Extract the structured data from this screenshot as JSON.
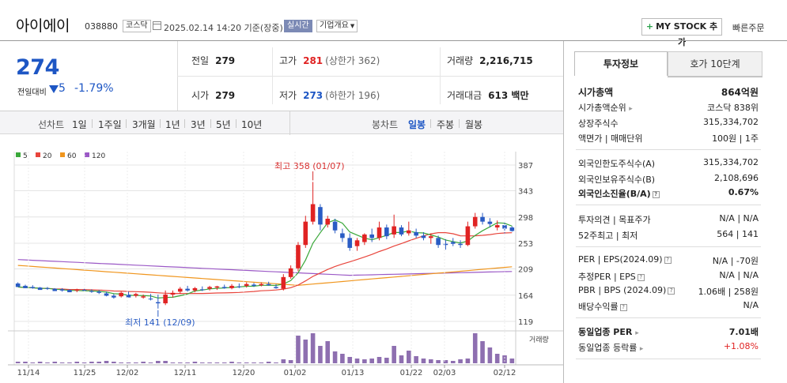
{
  "header": {
    "company": "아이에이",
    "code": "038880",
    "market": "코스닥",
    "basis": "2025.02.14 14:20 기준(장중)",
    "realtime": "실시간",
    "corp_info": "기업개요",
    "mystock": "MY STOCK 추가",
    "quick_order": "빠른주문"
  },
  "quote": {
    "price": "274",
    "change_label": "전일대비",
    "change": "5",
    "change_rate": "-1.79%",
    "prev_label": "전일",
    "prev": "279",
    "open_label": "시가",
    "open": "279",
    "high_label": "고가",
    "high": "281",
    "upper_limit": "(상한가 362)",
    "low_label": "저가",
    "low": "273",
    "lower_limit": "(하한가 196)",
    "volume_label": "거래량",
    "volume": "2,216,715",
    "amount_label": "거래대금",
    "amount": "613 백만"
  },
  "toolbar": {
    "line_chart": "선차트",
    "periods": [
      "1일",
      "1주일",
      "3개월",
      "1년",
      "3년",
      "5년",
      "10년"
    ],
    "candle_chart": "봉차트",
    "candle_types": [
      "일봉",
      "주봉",
      "월봉"
    ],
    "active_candle": "일봉"
  },
  "chart_data": {
    "type": "candlestick",
    "legend": [
      "5",
      "20",
      "60",
      "120"
    ],
    "legend_colors": [
      "#3aa83a",
      "#e8453c",
      "#f0961e",
      "#9b59c6"
    ],
    "y_ticks": [
      "387",
      "343",
      "298",
      "253",
      "209",
      "164",
      "119"
    ],
    "ylim": [
      119,
      387
    ],
    "x_labels": [
      "11/14",
      "11/25",
      "12/02",
      "12/11",
      "12/20",
      "01/02",
      "01/13",
      "01/22",
      "02/03",
      "02/12"
    ],
    "high_note": "최고 358 (01/07)",
    "low_note": "최저 141 (12/09)",
    "volume_label": "거래량",
    "candles": [
      [
        184,
        186,
        180,
        178
      ],
      [
        180,
        182,
        177,
        176
      ],
      [
        178,
        181,
        175,
        176
      ],
      [
        177,
        178,
        174,
        173
      ],
      [
        176,
        178,
        173,
        175
      ],
      [
        175,
        176,
        172,
        171
      ],
      [
        174,
        176,
        170,
        172
      ],
      [
        173,
        174,
        170,
        169
      ],
      [
        172,
        175,
        169,
        173
      ],
      [
        173,
        175,
        171,
        172
      ],
      [
        171,
        174,
        168,
        170
      ],
      [
        170,
        173,
        166,
        168
      ],
      [
        167,
        170,
        162,
        163
      ],
      [
        163,
        166,
        158,
        160
      ],
      [
        162,
        170,
        160,
        168
      ],
      [
        165,
        170,
        162,
        160
      ],
      [
        163,
        168,
        160,
        166
      ],
      [
        160,
        165,
        158,
        162
      ],
      [
        158,
        166,
        155,
        157
      ],
      [
        152,
        165,
        141,
        150
      ],
      [
        150,
        172,
        147,
        165
      ],
      [
        165,
        172,
        160,
        168
      ],
      [
        170,
        178,
        166,
        175
      ],
      [
        175,
        180,
        170,
        172
      ],
      [
        172,
        178,
        169,
        176
      ],
      [
        174,
        179,
        171,
        173
      ],
      [
        175,
        180,
        172,
        178
      ],
      [
        177,
        180,
        173,
        179
      ],
      [
        178,
        182,
        175,
        176
      ],
      [
        176,
        183,
        174,
        180
      ],
      [
        179,
        184,
        176,
        178
      ],
      [
        180,
        186,
        177,
        183
      ],
      [
        182,
        185,
        178,
        180
      ],
      [
        181,
        186,
        179,
        183
      ],
      [
        183,
        187,
        180,
        181
      ],
      [
        178,
        183,
        175,
        176
      ],
      [
        175,
        200,
        172,
        195
      ],
      [
        195,
        215,
        192,
        210
      ],
      [
        210,
        255,
        205,
        250
      ],
      [
        250,
        300,
        245,
        290
      ],
      [
        290,
        358,
        285,
        320
      ],
      [
        315,
        320,
        275,
        285
      ],
      [
        285,
        300,
        280,
        295
      ],
      [
        290,
        295,
        270,
        275
      ],
      [
        270,
        278,
        255,
        262
      ],
      [
        262,
        270,
        240,
        245
      ],
      [
        248,
        262,
        240,
        258
      ],
      [
        255,
        270,
        250,
        268
      ],
      [
        268,
        278,
        255,
        262
      ],
      [
        262,
        290,
        258,
        280
      ],
      [
        280,
        285,
        260,
        265
      ],
      [
        268,
        302,
        262,
        282
      ],
      [
        280,
        284,
        265,
        268
      ],
      [
        270,
        290,
        266,
        275
      ],
      [
        272,
        278,
        262,
        266
      ],
      [
        266,
        272,
        258,
        262
      ],
      [
        262,
        270,
        252,
        265
      ],
      [
        262,
        266,
        245,
        250
      ],
      [
        252,
        260,
        242,
        250
      ],
      [
        255,
        262,
        248,
        252
      ],
      [
        252,
        258,
        245,
        250
      ],
      [
        250,
        290,
        248,
        282
      ],
      [
        282,
        305,
        278,
        298
      ],
      [
        298,
        305,
        285,
        290
      ],
      [
        290,
        296,
        280,
        286
      ],
      [
        280,
        292,
        275,
        284
      ],
      [
        284,
        288,
        270,
        278
      ],
      [
        280,
        282,
        273,
        274
      ]
    ],
    "volumes": [
      2,
      2,
      1,
      2,
      1,
      2,
      1,
      1,
      2,
      1,
      2,
      2,
      3,
      2,
      1,
      1,
      1,
      2,
      1,
      3,
      3,
      1,
      1,
      1,
      2,
      1,
      1,
      1,
      1,
      2,
      1,
      1,
      1,
      1,
      2,
      1,
      5,
      4,
      35,
      30,
      38,
      22,
      28,
      15,
      12,
      8,
      6,
      5,
      6,
      8,
      7,
      22,
      10,
      16,
      9,
      6,
      5,
      4,
      4,
      3,
      5,
      6,
      38,
      28,
      20,
      12,
      10,
      6
    ]
  },
  "invest": {
    "tab_active": "투자정보",
    "tab_other": "호가 10단계",
    "rows": [
      {
        "label": "시가총액",
        "value": "864억원"
      },
      {
        "label": "시가총액순위",
        "value": "코스닥 838위"
      },
      {
        "label": "상장주식수",
        "value": "315,334,702"
      },
      {
        "label": "액면가 | 매매단위",
        "value": "100원 | 1주"
      },
      {
        "label": "외국인한도주식수(A)",
        "value": "315,334,702"
      },
      {
        "label": "외국인보유주식수(B)",
        "value": "2,108,696"
      },
      {
        "label": "외국인소진율(B/A)",
        "value": "0.67%"
      },
      {
        "label": "투자의견 | 목표주가",
        "value": "N/A | N/A"
      },
      {
        "label": "52주최고 | 최저",
        "value": "564 | 141"
      },
      {
        "label": "PER | EPS(2024.09)",
        "value": "N/A | -70원"
      },
      {
        "label": "추정PER | EPS",
        "value": "N/A | N/A"
      },
      {
        "label": "PBR | BPS (2024.09)",
        "value": "1.06배 | 258원"
      },
      {
        "label": "배당수익률",
        "value": "N/A"
      },
      {
        "label": "동일업종 PER",
        "value": "7.01배"
      },
      {
        "label": "동일업종 등락률",
        "value": "+1.08%"
      }
    ]
  }
}
